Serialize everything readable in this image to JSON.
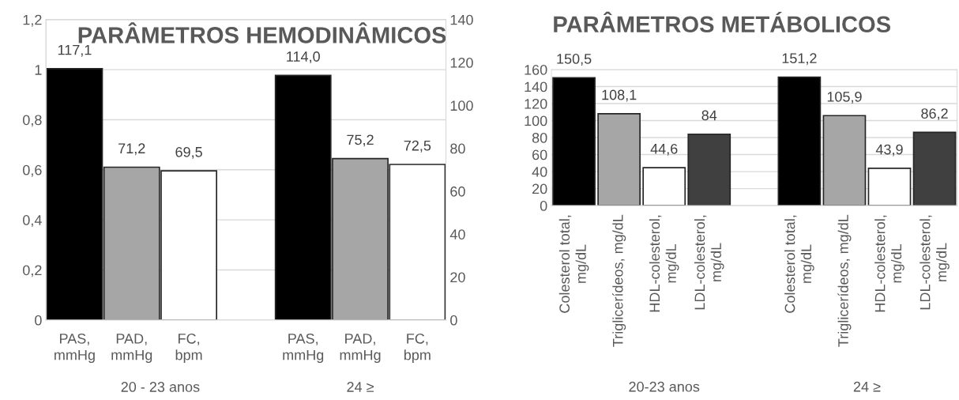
{
  "chart_data": [
    {
      "type": "bar",
      "title": "PARÂMETROS HEMODINÂMICOS",
      "categories": [
        "PAS,\nmmHg",
        "PAD,\nmmHg",
        "FC,\nbpm",
        null,
        "PAS,\nmmHg",
        "PAD,\nmmHg",
        "FC,\nbpm"
      ],
      "series": [
        {
          "axis": "y2",
          "values": [
            117.1,
            71.2,
            69.5,
            null,
            114.0,
            75.2,
            72.5
          ],
          "colors": [
            "#000000",
            "#a6a6a6",
            "#ffffff",
            null,
            "#000000",
            "#a6a6a6",
            "#ffffff"
          ],
          "value_labels": [
            "117,1",
            "71,2",
            "69,5",
            null,
            "114,0",
            "75,2",
            "72,5"
          ]
        }
      ],
      "ylim": [
        0,
        1.2
      ],
      "yticks": [
        0,
        {
          "value": 0.2,
          "label": "0,2"
        },
        {
          "value": 0.4,
          "label": "0,4"
        },
        {
          "value": 0.6,
          "label": "0,6"
        },
        {
          "value": 0.8,
          "label": "0,8"
        },
        1,
        {
          "value": 1.2,
          "label": "1,2"
        }
      ],
      "y2lim": [
        0,
        140
      ],
      "y2ticks": [
        0,
        20,
        40,
        60,
        80,
        100,
        120,
        140
      ],
      "grid": "y",
      "annotations": [
        "20 - 23 anos",
        "24 ≥"
      ]
    },
    {
      "type": "bar",
      "title": "PARÂMETROS METÁBOLICOS",
      "categories": [
        "Colesterol total,\nmg/dL",
        "Triglicerídeos, mg/dL",
        "HDL-colesterol,\nmg/dL",
        "LDL-colesterol,\nmg/dL",
        null,
        "Colesterol total,\nmg/dL",
        "Triglicerídeos, mg/dL",
        "HDL-colesterol,\nmg/dL",
        "LDL-colesterol,\nmg/dL"
      ],
      "series": [
        {
          "values": [
            150.5,
            108.1,
            44.6,
            84,
            null,
            151.2,
            105.9,
            43.9,
            86.2
          ],
          "colors": [
            "#000000",
            "#a6a6a6",
            "#ffffff",
            "#404040",
            null,
            "#000000",
            "#a6a6a6",
            "#ffffff",
            "#404040"
          ],
          "value_labels": [
            "150,5",
            "108,1",
            "44,6",
            "84",
            null,
            "151,2",
            "105,9",
            "43,9",
            "86,2"
          ]
        }
      ],
      "ylim": [
        0,
        160
      ],
      "yticks": [
        0,
        20,
        40,
        60,
        80,
        100,
        120,
        140,
        160
      ],
      "grid": "y",
      "annotations": [
        "20-23 anos",
        "24 ≥"
      ]
    }
  ]
}
